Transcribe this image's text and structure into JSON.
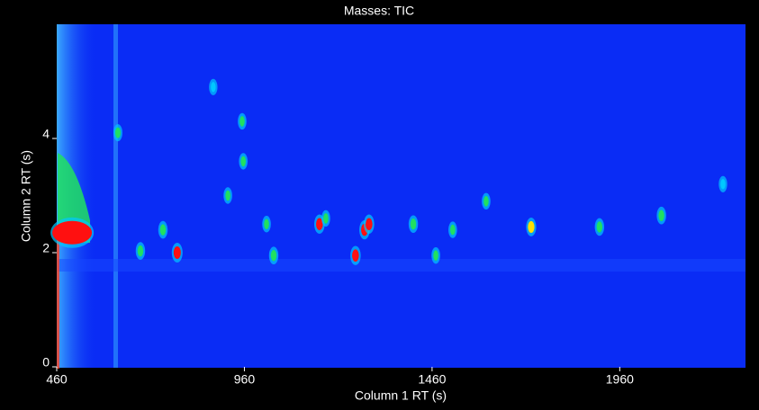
{
  "chart_data": {
    "type": "heatmap",
    "title": "Masses: TIC",
    "xlabel": "Column 1 RT (s)",
    "ylabel": "Column 2 RT (s)",
    "xlim": [
      460,
      2295
    ],
    "ylim": [
      0,
      6
    ],
    "xticks": [
      460,
      960,
      1460,
      1960
    ],
    "yticks": [
      0,
      2,
      4
    ],
    "background": "#0a2cf5",
    "colormap": [
      "#0a2cf5",
      "#00c8ff",
      "#20e060",
      "#ffe000",
      "#ff1010"
    ],
    "peaks": {
      "x": [
        501,
        683,
        743,
        781,
        877,
        916,
        954,
        957,
        1019,
        1038,
        1160,
        1177,
        1256,
        1280,
        1292,
        1410,
        1470,
        1515,
        1604,
        1724,
        1906,
        2071,
        2235,
        623
      ],
      "y": [
        2.35,
        2.03,
        2.4,
        2.0,
        4.9,
        3.0,
        4.3,
        3.6,
        2.5,
        1.95,
        2.5,
        2.6,
        1.95,
        2.4,
        2.5,
        2.5,
        1.95,
        2.4,
        2.9,
        2.45,
        2.45,
        2.65,
        3.2,
        4.1
      ],
      "intensity": [
        1,
        0.6,
        0.6,
        1,
        0.35,
        0.4,
        0.4,
        0.4,
        0.4,
        0.6,
        0.9,
        0.4,
        0.9,
        0.9,
        0.9,
        0.6,
        0.4,
        0.4,
        0.4,
        0.8,
        0.6,
        0.6,
        0.35,
        0.5
      ]
    }
  }
}
